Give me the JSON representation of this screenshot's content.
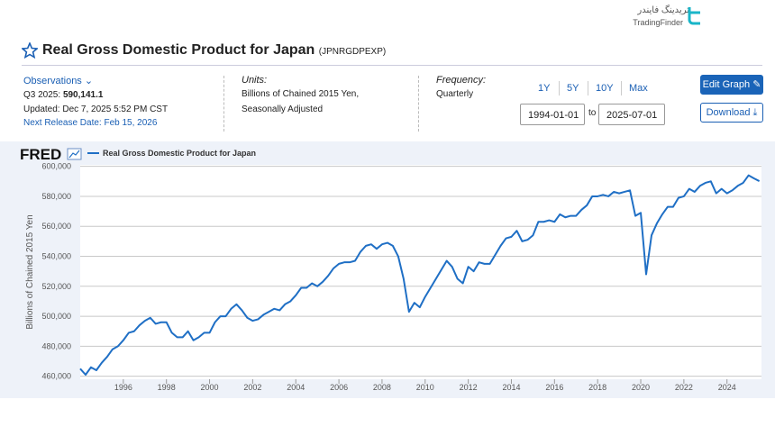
{
  "logo": {
    "persian": "تریدینگ فایندر",
    "latin": "TradingFinder"
  },
  "header": {
    "title": "Real Gross Domestic Product for Japan",
    "code": "(JPNRGDPEXP)"
  },
  "observations": {
    "heading": "Observations",
    "latest_label": "Q3 2025:",
    "latest_value": "590,141.1",
    "updated": "Updated: Dec 7, 2025 5:52 PM CST",
    "next_release": "Next Release Date: Feb 15, 2026"
  },
  "units": {
    "heading": "Units:",
    "line1": "Billions of Chained 2015 Yen,",
    "line2": "Seasonally Adjusted"
  },
  "frequency": {
    "heading": "Frequency:",
    "value": "Quarterly"
  },
  "ranges": [
    "1Y",
    "5Y",
    "10Y",
    "Max"
  ],
  "dates": {
    "start": "1994-01-01",
    "to": "to",
    "end": "2025-07-01"
  },
  "buttons": {
    "edit": "Edit Graph",
    "download": "Download"
  },
  "chart_data": {
    "type": "line",
    "brand": "FRED",
    "y_label": "Billions of Chained 2015 Yen",
    "series": [
      {
        "name": "Real Gross Domestic Product for Japan",
        "color": "#1f6fc5",
        "values": [
          465000,
          461000,
          466000,
          464000,
          469000,
          473000,
          478000,
          480000,
          484000,
          489000,
          490000,
          494000,
          497000,
          499000,
          495000,
          496000,
          496000,
          489000,
          486000,
          486000,
          490000,
          484000,
          486000,
          489000,
          489000,
          496000,
          500000,
          500000,
          505000,
          508000,
          504000,
          499000,
          497000,
          498000,
          501000,
          503000,
          505000,
          504000,
          508000,
          510000,
          514000,
          519000,
          519000,
          522000,
          520000,
          523000,
          527000,
          532000,
          535000,
          536000,
          536000,
          537000,
          543000,
          547000,
          548000,
          545000,
          548000,
          549000,
          547000,
          540000,
          525000,
          503000,
          509000,
          506000,
          513000,
          519000,
          525000,
          531000,
          537000,
          533000,
          525000,
          522000,
          533000,
          530000,
          536000,
          535000,
          535000,
          541000,
          547000,
          552000,
          553000,
          557000,
          550000,
          551000,
          554000,
          563000,
          563000,
          564000,
          563000,
          568000,
          566000,
          567000,
          567000,
          571000,
          574000,
          580000,
          580000,
          581000,
          580000,
          583000,
          582000,
          583000,
          584000,
          567000,
          569000,
          528000,
          554000,
          562000,
          568000,
          573000,
          573000,
          579000,
          580000,
          585000,
          583000,
          587000,
          589000,
          590000,
          582000,
          585000,
          582000,
          584000,
          587000,
          589000,
          594000,
          592000,
          590141.1
        ]
      }
    ],
    "x": [
      1994,
      1994.25,
      1994.5,
      1994.75,
      1995,
      1995.25,
      1995.5,
      1995.75,
      1996,
      1996.25,
      1996.5,
      1996.75,
      1997,
      1997.25,
      1997.5,
      1997.75,
      1998,
      1998.25,
      1998.5,
      1998.75,
      1999,
      1999.25,
      1999.5,
      1999.75,
      2000,
      2000.25,
      2000.5,
      2000.75,
      2001,
      2001.25,
      2001.5,
      2001.75,
      2002,
      2002.25,
      2002.5,
      2002.75,
      2003,
      2003.25,
      2003.5,
      2003.75,
      2004,
      2004.25,
      2004.5,
      2004.75,
      2005,
      2005.25,
      2005.5,
      2005.75,
      2006,
      2006.25,
      2006.5,
      2006.75,
      2007,
      2007.25,
      2007.5,
      2007.75,
      2008,
      2008.25,
      2008.5,
      2008.75,
      2009,
      2009.25,
      2009.5,
      2009.75,
      2010,
      2010.25,
      2010.5,
      2010.75,
      2011,
      2011.25,
      2011.5,
      2011.75,
      2012,
      2012.25,
      2012.5,
      2012.75,
      2013,
      2013.25,
      2013.5,
      2013.75,
      2014,
      2014.25,
      2014.5,
      2014.75,
      2015,
      2015.25,
      2015.5,
      2015.75,
      2016,
      2016.25,
      2016.5,
      2016.75,
      2017,
      2017.25,
      2017.5,
      2017.75,
      2018,
      2018.25,
      2018.5,
      2018.75,
      2019,
      2019.25,
      2019.5,
      2019.75,
      2020,
      2020.25,
      2020.5,
      2020.75,
      2021,
      2021.25,
      2021.5,
      2021.75,
      2022,
      2022.25,
      2022.5,
      2022.75,
      2023,
      2023.25,
      2023.5,
      2023.75,
      2024,
      2024.25,
      2024.5,
      2024.75,
      2025,
      2025.25,
      2025.5
    ],
    "xlim": [
      1994,
      2025.6
    ],
    "xticks": [
      1996,
      1998,
      2000,
      2002,
      2004,
      2006,
      2008,
      2010,
      2012,
      2014,
      2016,
      2018,
      2020,
      2022,
      2024
    ],
    "ylim": [
      458000,
      601000
    ],
    "yticks": [
      {
        "value": 460000,
        "label": "460,000"
      },
      {
        "value": 480000,
        "label": "480,000"
      },
      {
        "value": 500000,
        "label": "500,000"
      },
      {
        "value": 520000,
        "label": "520,000"
      },
      {
        "value": 540000,
        "label": "540,000"
      },
      {
        "value": 560000,
        "label": "560,000"
      },
      {
        "value": 580000,
        "label": "580,000"
      },
      {
        "value": 600000,
        "label": "600,000"
      }
    ],
    "grid": true
  }
}
